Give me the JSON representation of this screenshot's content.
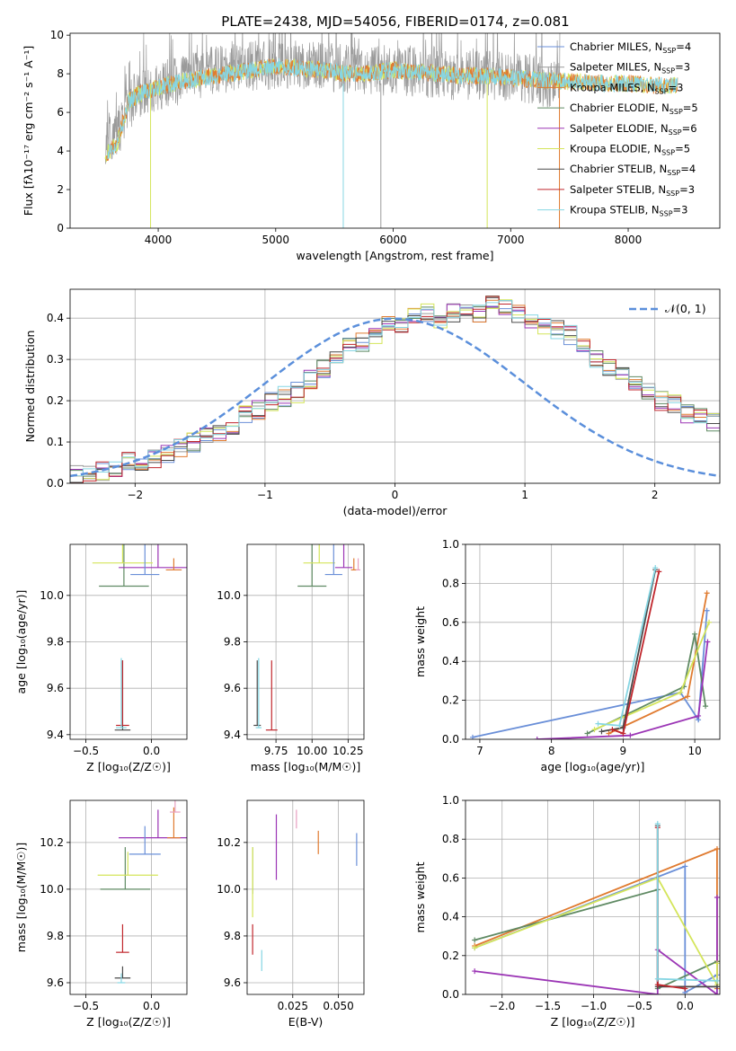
{
  "page_title": "PLATE=2438, MJD=54056, FIBERID=0174, z=0.081",
  "series_colors": {
    "chabrier_miles": "#6a8fd8",
    "salpeter_miles": "#9a9a9a",
    "kroupa_miles": "#e07b30",
    "chabrier_elodie": "#5f8a63",
    "salpeter_elodie": "#9b35b5",
    "kroupa_elodie": "#d4e55a",
    "chabrier_stelib": "#4a4a4a",
    "salpeter_stelib": "#c0262c",
    "kroupa_stelib": "#86d6e3",
    "pink": "#e8a0c0",
    "normal_curve": "#5b8fdb"
  },
  "chart_data": [
    {
      "id": "spectrum",
      "type": "line",
      "title": "PLATE=2438, MJD=54056, FIBERID=0174, z=0.081",
      "xlabel": "wavelength [Angstrom, rest frame]",
      "ylabel": "Flux [f",
      "ylabel_parts": {
        "main": "Flux [f",
        "lam": "λ",
        "mid": "10",
        "exp1": "−17",
        "tail": " erg cm",
        "exp2": "−2",
        "tail2": " s",
        "exp3": "−1",
        "tail3": " A",
        "exp4": "−1",
        "end": "]"
      },
      "xlim": [
        3250,
        8780
      ],
      "ylim": [
        0,
        10.1
      ],
      "xticks": [
        "4000",
        "5000",
        "6000",
        "7000",
        "8000"
      ],
      "xtick_values": [
        4000,
        5000,
        6000,
        7000,
        8000
      ],
      "yticks": [
        "0",
        "2",
        "4",
        "6",
        "8",
        "10"
      ],
      "ytick_values": [
        0,
        2,
        4,
        6,
        8,
        10
      ],
      "grid": false,
      "legend_position": "upper-right",
      "legend": [
        {
          "label": "Chabrier MILES, N",
          "sub": "SSP",
          "n": "=4",
          "color_key": "chabrier_miles"
        },
        {
          "label": "Salpeter MILES, N",
          "sub": "SSP",
          "n": "=3",
          "color_key": "salpeter_miles"
        },
        {
          "label": "Kroupa MILES, N",
          "sub": "SSP",
          "n": "=3",
          "color_key": "kroupa_miles"
        },
        {
          "label": "Chabrier ELODIE, N",
          "sub": "SSP",
          "n": "=5",
          "color_key": "chabrier_elodie"
        },
        {
          "label": "Salpeter ELODIE, N",
          "sub": "SSP",
          "n": "=6",
          "color_key": "salpeter_elodie"
        },
        {
          "label": "Kroupa ELODIE, N",
          "sub": "SSP",
          "n": "=5",
          "color_key": "kroupa_elodie"
        },
        {
          "label": "Chabrier STELIB, N",
          "sub": "SSP",
          "n": "=4",
          "color_key": "chabrier_stelib"
        },
        {
          "label": "Salpeter STELIB, N",
          "sub": "SSP",
          "n": "=3",
          "color_key": "salpeter_stelib"
        },
        {
          "label": "Kroupa STELIB, N",
          "sub": "SSP",
          "n": "=3",
          "color_key": "kroupa_stelib"
        }
      ],
      "data_flux_envelope": {
        "x": [
          3550,
          3700,
          3800,
          4000,
          4200,
          4500,
          4800,
          5000,
          5200,
          5500,
          5800,
          6000,
          6300,
          6600,
          6900,
          7200,
          7420
        ],
        "y": [
          4.2,
          5.5,
          6.8,
          7.4,
          7.6,
          8.2,
          8.4,
          8.5,
          8.4,
          8.3,
          8.1,
          8.2,
          8.0,
          7.9,
          7.9,
          7.7,
          7.4
        ]
      },
      "model_flux": {
        "x": [
          3550,
          3650,
          3750,
          3850,
          4000,
          4200,
          4400,
          4600,
          4800,
          5000,
          5200,
          5400,
          5600,
          5800,
          6000,
          6200,
          6400,
          6600,
          6800,
          7000,
          7200,
          7400,
          7600,
          7800,
          8000,
          8200,
          8420
        ],
        "y": [
          3.8,
          4.4,
          6.6,
          7.0,
          7.3,
          7.6,
          7.8,
          8.0,
          8.2,
          8.4,
          8.3,
          8.2,
          8.0,
          8.0,
          8.2,
          8.1,
          8.0,
          7.9,
          7.9,
          7.8,
          7.7,
          7.6,
          7.6,
          7.5,
          7.5,
          7.4,
          7.4
        ]
      }
    },
    {
      "id": "residual_hist",
      "type": "bar",
      "xlabel": "(data-model)/error",
      "ylabel": "Normed distribution",
      "xlim": [
        -2.5,
        2.5
      ],
      "ylim": [
        0,
        0.47
      ],
      "xticks": [
        "−2",
        "−1",
        "0",
        "1",
        "2"
      ],
      "xtick_values": [
        -2,
        -1,
        0,
        1,
        2
      ],
      "yticks": [
        "0.0",
        "0.1",
        "0.2",
        "0.3",
        "0.4"
      ],
      "ytick_values": [
        0,
        0.1,
        0.2,
        0.3,
        0.4
      ],
      "grid": true,
      "legend_position": "upper-right",
      "legend_label": "𝒩(0, 1)",
      "bins": {
        "start": -2.5,
        "width": 0.1,
        "base": [
          0.018,
          0.028,
          0.032,
          0.04,
          0.05,
          0.055,
          0.062,
          0.07,
          0.085,
          0.1,
          0.11,
          0.12,
          0.14,
          0.165,
          0.18,
          0.2,
          0.21,
          0.22,
          0.25,
          0.28,
          0.3,
          0.33,
          0.34,
          0.36,
          0.38,
          0.39,
          0.4,
          0.41,
          0.4,
          0.41,
          0.42,
          0.41,
          0.43,
          0.42,
          0.41,
          0.4,
          0.38,
          0.37,
          0.36,
          0.33,
          0.3,
          0.28,
          0.26,
          0.24,
          0.22,
          0.2,
          0.19,
          0.17,
          0.16,
          0.15,
          0.14,
          0.13,
          0.11,
          0.1,
          0.09,
          0.08,
          0.075,
          0.07,
          0.065,
          0.05,
          0.04,
          0.035,
          0.03,
          0.025,
          0.02,
          0.018,
          0.015,
          0.015,
          0.01,
          0.01
        ]
      },
      "series_color_keys": [
        "chabrier_miles",
        "salpeter_miles",
        "kroupa_miles",
        "chabrier_elodie",
        "salpeter_elodie",
        "kroupa_elodie",
        "chabrier_stelib",
        "salpeter_stelib",
        "kroupa_stelib"
      ]
    },
    {
      "id": "age_vs_Z",
      "type": "scatter",
      "xlabel": "Z [log₁₀(Z/Z☉)]",
      "ylabel": "age  [log₁₀(age/yr)]",
      "xlim": [
        -0.62,
        0.27
      ],
      "ylim": [
        9.38,
        10.22
      ],
      "xticks": [
        "−0.5",
        "0.0"
      ],
      "xtick_values": [
        -0.5,
        0.0
      ],
      "yticks": [
        "9.4",
        "9.6",
        "9.8",
        "10.0"
      ],
      "ytick_values": [
        9.4,
        9.6,
        9.8,
        10.0
      ],
      "grid": true,
      "points": [
        {
          "x": -0.22,
          "y": 9.42,
          "xerr": 0.12,
          "yerr": 0.3,
          "color_key": "chabrier_stelib"
        },
        {
          "x": -0.22,
          "y": 9.44,
          "xerr": 0.1,
          "yerr": 0.28,
          "color_key": "salpeter_stelib"
        },
        {
          "x": -0.23,
          "y": 9.43,
          "xerr": 0.08,
          "yerr": 0.3,
          "color_key": "kroupa_stelib"
        },
        {
          "x": -0.21,
          "y": 10.04,
          "xerr": 0.38,
          "yerr": 0.22,
          "color_key": "chabrier_elodie"
        },
        {
          "x": 0.05,
          "y": 10.12,
          "xerr": 0.6,
          "yerr": 0.24,
          "color_key": "salpeter_elodie"
        },
        {
          "x": -0.22,
          "y": 10.14,
          "xerr": 0.46,
          "yerr": 0.32,
          "color_key": "kroupa_elodie"
        },
        {
          "x": -0.05,
          "y": 10.09,
          "xerr": 0.22,
          "yerr": 0.3,
          "color_key": "chabrier_miles"
        },
        {
          "x": 0.17,
          "y": 10.11,
          "xerr": 0.12,
          "yerr": 0.05,
          "color_key": "kroupa_miles"
        }
      ]
    },
    {
      "id": "age_vs_mass",
      "type": "scatter",
      "xlabel": "mass [log₁₀(M/M☉)]",
      "ylabel": "",
      "xlim": [
        9.55,
        10.36
      ],
      "ylim": [
        9.38,
        10.22
      ],
      "xticks": [
        "9.75",
        "10.00",
        "10.25"
      ],
      "xtick_values": [
        9.75,
        10.0,
        10.25
      ],
      "yticks": [
        "9.4",
        "9.6",
        "9.8",
        "10.0"
      ],
      "ytick_values": [
        9.4,
        9.6,
        9.8,
        10.0
      ],
      "grid": true,
      "points": [
        {
          "x": 9.62,
          "y": 9.44,
          "xerr": 0.05,
          "yerr": 0.28,
          "color_key": "chabrier_stelib"
        },
        {
          "x": 9.72,
          "y": 9.42,
          "xerr": 0.08,
          "yerr": 0.3,
          "color_key": "salpeter_stelib"
        },
        {
          "x": 9.63,
          "y": 9.43,
          "xerr": 0.04,
          "yerr": 0.3,
          "color_key": "kroupa_stelib"
        },
        {
          "x": 10.0,
          "y": 10.04,
          "xerr": 0.2,
          "yerr": 0.24,
          "color_key": "chabrier_elodie"
        },
        {
          "x": 10.22,
          "y": 10.12,
          "xerr": 0.12,
          "yerr": 0.24,
          "color_key": "salpeter_elodie"
        },
        {
          "x": 10.05,
          "y": 10.14,
          "xerr": 0.22,
          "yerr": 0.3,
          "color_key": "kroupa_elodie"
        },
        {
          "x": 10.15,
          "y": 10.09,
          "xerr": 0.12,
          "yerr": 0.3,
          "color_key": "chabrier_miles"
        },
        {
          "x": 10.29,
          "y": 10.11,
          "xerr": 0.04,
          "yerr": 0.05,
          "color_key": "kroupa_miles"
        },
        {
          "x": 10.32,
          "y": 10.11,
          "xerr": 0.03,
          "yerr": 0.05,
          "color_key": "pink"
        }
      ]
    },
    {
      "id": "massweight_vs_age",
      "type": "line",
      "xlabel": "age  [log₁₀(age/yr)]",
      "ylabel": "mass weight",
      "xlim": [
        6.8,
        10.35
      ],
      "ylim": [
        0,
        1.0
      ],
      "xticks": [
        "7",
        "8",
        "9",
        "10"
      ],
      "xtick_values": [
        7,
        8,
        9,
        10
      ],
      "yticks": [
        "0.0",
        "0.2",
        "0.4",
        "0.6",
        "0.8",
        "1.0"
      ],
      "ytick_values": [
        0,
        0.2,
        0.4,
        0.6,
        0.8,
        1.0
      ],
      "grid": true,
      "series": [
        {
          "color_key": "chabrier_miles",
          "x": [
            6.9,
            9.8,
            10.05,
            10.17
          ],
          "y": [
            0.01,
            0.24,
            0.1,
            0.66
          ]
        },
        {
          "color_key": "kroupa_miles",
          "x": [
            8.8,
            9.9,
            10.17
          ],
          "y": [
            0.03,
            0.22,
            0.75
          ]
        },
        {
          "color_key": "chabrier_elodie",
          "x": [
            8.5,
            9.85,
            10.0,
            10.15
          ],
          "y": [
            0.03,
            0.27,
            0.54,
            0.17
          ]
        },
        {
          "color_key": "salpeter_elodie",
          "x": [
            7.8,
            9.1,
            10.05,
            10.18
          ],
          "y": [
            0.0,
            0.02,
            0.12,
            0.5
          ]
        },
        {
          "color_key": "kroupa_elodie",
          "x": [
            8.6,
            9.8,
            10.2
          ],
          "y": [
            0.05,
            0.24,
            0.6
          ]
        },
        {
          "color_key": "chabrier_stelib",
          "x": [
            8.7,
            9.0,
            9.45
          ],
          "y": [
            0.04,
            0.06,
            0.87
          ]
        },
        {
          "color_key": "salpeter_stelib",
          "x": [
            8.85,
            9.0,
            9.5
          ],
          "y": [
            0.05,
            0.03,
            0.86
          ]
        },
        {
          "color_key": "kroupa_stelib",
          "x": [
            8.65,
            8.95,
            9.45
          ],
          "y": [
            0.08,
            0.07,
            0.88
          ]
        }
      ]
    },
    {
      "id": "mass_vs_Z",
      "type": "scatter",
      "xlabel": "Z [log₁₀(Z/Z☉)]",
      "ylabel": "mass [log₁₀(M/M☉)]",
      "xlim": [
        -0.62,
        0.27
      ],
      "ylim": [
        9.55,
        10.38
      ],
      "xticks": [
        "−0.5",
        "0.0"
      ],
      "xtick_values": [
        -0.5,
        0.0
      ],
      "yticks": [
        "9.6",
        "9.8",
        "10.0",
        "10.2"
      ],
      "ytick_values": [
        9.6,
        9.8,
        10.0,
        10.2
      ],
      "grid": true,
      "points": [
        {
          "x": -0.22,
          "y": 9.62,
          "xerr": 0.12,
          "yerr": 0.05,
          "color_key": "chabrier_stelib"
        },
        {
          "x": -0.22,
          "y": 9.73,
          "xerr": 0.1,
          "yerr": 0.12,
          "color_key": "salpeter_stelib"
        },
        {
          "x": -0.23,
          "y": 9.6,
          "xerr": 0.06,
          "yerr": 0.04,
          "color_key": "kroupa_stelib"
        },
        {
          "x": -0.2,
          "y": 10.0,
          "xerr": 0.38,
          "yerr": 0.18,
          "color_key": "chabrier_elodie"
        },
        {
          "x": 0.05,
          "y": 10.22,
          "xerr": 0.6,
          "yerr": 0.12,
          "color_key": "salpeter_elodie"
        },
        {
          "x": -0.18,
          "y": 10.06,
          "xerr": 0.46,
          "yerr": 0.1,
          "color_key": "kroupa_elodie"
        },
        {
          "x": -0.05,
          "y": 10.15,
          "xerr": 0.24,
          "yerr": 0.12,
          "color_key": "chabrier_miles"
        },
        {
          "x": 0.17,
          "y": 10.22,
          "xerr": 0.1,
          "yerr": 0.13,
          "color_key": "kroupa_miles"
        },
        {
          "x": 0.18,
          "y": 10.33,
          "xerr": 0.08,
          "yerr": 0.05,
          "color_key": "pink"
        }
      ]
    },
    {
      "id": "mass_vs_ebv",
      "type": "scatter",
      "xlabel": "E(B-V)",
      "ylabel": "",
      "xlim": [
        0.0,
        0.064
      ],
      "ylim": [
        9.55,
        10.38
      ],
      "xticks": [
        "0.025",
        "0.050"
      ],
      "xtick_values": [
        0.025,
        0.05
      ],
      "yticks": [
        "9.6",
        "9.8",
        "10.0",
        "10.2"
      ],
      "ytick_values": [
        9.6,
        9.8,
        10.0,
        10.2
      ],
      "grid": true,
      "points": [
        {
          "x": 0.003,
          "y": 9.72,
          "yerr": 0.13,
          "color_key": "salpeter_stelib"
        },
        {
          "x": 0.003,
          "y": 9.98,
          "yerr": 0.2,
          "color_key": "chabrier_elodie"
        },
        {
          "x": 0.003,
          "y": 9.88,
          "yerr": 0.3,
          "color_key": "kroupa_elodie"
        },
        {
          "x": 0.008,
          "y": 9.65,
          "yerr": 0.09,
          "color_key": "kroupa_stelib"
        },
        {
          "x": 0.016,
          "y": 10.04,
          "yerr": 0.28,
          "color_key": "salpeter_elodie"
        },
        {
          "x": 0.027,
          "y": 10.26,
          "yerr": 0.08,
          "color_key": "pink"
        },
        {
          "x": 0.039,
          "y": 10.15,
          "yerr": 0.1,
          "color_key": "kroupa_miles"
        },
        {
          "x": 0.06,
          "y": 10.1,
          "yerr": 0.14,
          "color_key": "chabrier_miles"
        }
      ]
    },
    {
      "id": "massweight_vs_Z",
      "type": "line",
      "xlabel": "Z [log₁₀(Z/Z☉)]",
      "ylabel": "mass weight",
      "xlim": [
        -2.4,
        0.38
      ],
      "ylim": [
        0,
        1.0
      ],
      "xticks": [
        "−2.0",
        "−1.5",
        "−1.0",
        "−0.5",
        "0.0"
      ],
      "xtick_values": [
        -2.0,
        -1.5,
        -1.0,
        -0.5,
        0.0
      ],
      "yticks": [
        "0.0",
        "0.2",
        "0.4",
        "0.6",
        "0.8",
        "1.0"
      ],
      "ytick_values": [
        0,
        0.2,
        0.4,
        0.6,
        0.8,
        1.0
      ],
      "grid": true,
      "series": [
        {
          "color_key": "chabrier_miles",
          "x": [
            -2.3,
            0.0,
            0.0,
            0.35
          ],
          "y": [
            0.24,
            0.66,
            0.01,
            0.1
          ]
        },
        {
          "color_key": "kroupa_miles",
          "x": [
            -2.3,
            0.35,
            0.35,
            0.35
          ],
          "y": [
            0.25,
            0.75,
            0.17,
            0.03
          ]
        },
        {
          "color_key": "chabrier_elodie",
          "x": [
            -2.3,
            -0.3,
            -0.3,
            0.35
          ],
          "y": [
            0.28,
            0.54,
            0.03,
            0.17
          ]
        },
        {
          "color_key": "salpeter_elodie",
          "x": [
            -2.3,
            -0.3,
            -0.3,
            0.35,
            0.35
          ],
          "y": [
            0.12,
            0.0,
            0.23,
            0.0,
            0.5
          ]
        },
        {
          "color_key": "kroupa_elodie",
          "x": [
            -2.3,
            -0.3,
            0.35,
            0.35
          ],
          "y": [
            0.24,
            0.6,
            0.05,
            0.16
          ]
        },
        {
          "color_key": "chabrier_stelib",
          "x": [
            -0.3,
            -0.3,
            0.35
          ],
          "y": [
            0.87,
            0.04,
            0.04
          ]
        },
        {
          "color_key": "salpeter_stelib",
          "x": [
            -0.3,
            -0.3,
            0.0
          ],
          "y": [
            0.86,
            0.05,
            0.03
          ]
        },
        {
          "color_key": "kroupa_stelib",
          "x": [
            -0.3,
            -0.3,
            0.35
          ],
          "y": [
            0.88,
            0.08,
            0.07
          ]
        }
      ]
    }
  ]
}
